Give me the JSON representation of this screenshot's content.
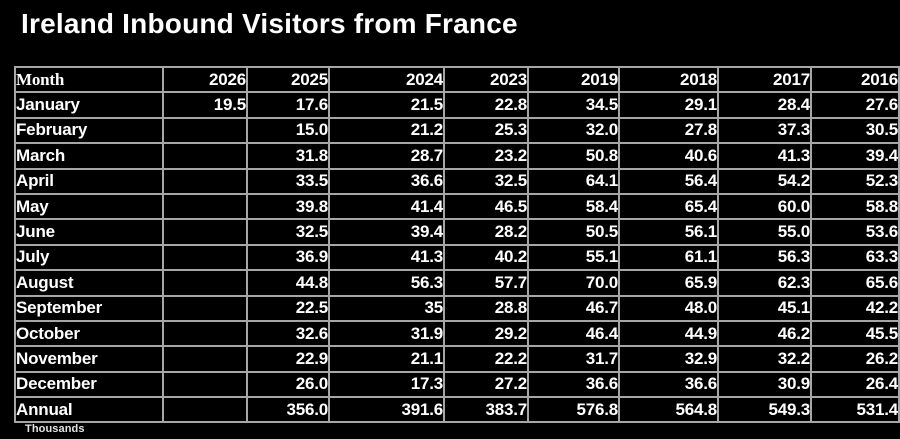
{
  "title": "Ireland Inbound Visitors from France",
  "footnote": "Thousands",
  "table": {
    "columns": [
      "Month",
      "2026",
      "2025",
      "2024",
      "2023",
      "2019",
      "2018",
      "2017",
      "2016"
    ],
    "rows": [
      {
        "label": "January",
        "values": [
          "19.5",
          "17.6",
          "21.5",
          "22.8",
          "34.5",
          "29.1",
          "28.4",
          "27.6"
        ]
      },
      {
        "label": "February",
        "values": [
          "",
          "15.0",
          "21.2",
          "25.3",
          "32.0",
          "27.8",
          "37.3",
          "30.5"
        ]
      },
      {
        "label": "March",
        "values": [
          "",
          "31.8",
          "28.7",
          "23.2",
          "50.8",
          "40.6",
          "41.3",
          "39.4"
        ]
      },
      {
        "label": "April",
        "values": [
          "",
          "33.5",
          "36.6",
          "32.5",
          "64.1",
          "56.4",
          "54.2",
          "52.3"
        ]
      },
      {
        "label": "May",
        "values": [
          "",
          "39.8",
          "41.4",
          "46.5",
          "58.4",
          "65.4",
          "60.0",
          "58.8"
        ]
      },
      {
        "label": "June",
        "values": [
          "",
          "32.5",
          "39.4",
          "28.2",
          "50.5",
          "56.1",
          "55.0",
          "53.6"
        ]
      },
      {
        "label": "July",
        "values": [
          "",
          "36.9",
          "41.3",
          "40.2",
          "55.1",
          "61.1",
          "56.3",
          "63.3"
        ]
      },
      {
        "label": "August",
        "values": [
          "",
          "44.8",
          "56.3",
          "57.7",
          "70.0",
          "65.9",
          "62.3",
          "65.6"
        ]
      },
      {
        "label": "September",
        "values": [
          "",
          "22.5",
          "35",
          "28.8",
          "46.7",
          "48.0",
          "45.1",
          "42.2"
        ]
      },
      {
        "label": "October",
        "values": [
          "",
          "32.6",
          "31.9",
          "29.2",
          "46.4",
          "44.9",
          "46.2",
          "45.5"
        ]
      },
      {
        "label": "November",
        "values": [
          "",
          "22.9",
          "21.1",
          "22.2",
          "31.7",
          "32.9",
          "32.2",
          "26.2"
        ]
      },
      {
        "label": "December",
        "values": [
          "",
          "26.0",
          "17.3",
          "27.2",
          "36.6",
          "36.6",
          "30.9",
          "26.4"
        ]
      },
      {
        "label": "Annual",
        "values": [
          "",
          "356.0",
          "391.6",
          "383.7",
          "576.8",
          "564.8",
          "549.3",
          "531.4"
        ]
      }
    ]
  },
  "colors": {
    "background": "#000000",
    "text": "#ffffff",
    "grid_border": "#a6a6a6"
  },
  "chart_data": {
    "type": "table",
    "title": "Ireland Inbound Visitors from France",
    "units": "Thousands",
    "categories": [
      "January",
      "February",
      "March",
      "April",
      "May",
      "June",
      "July",
      "August",
      "September",
      "October",
      "November",
      "December",
      "Annual"
    ],
    "series": [
      {
        "name": "2026",
        "values": [
          19.5,
          null,
          null,
          null,
          null,
          null,
          null,
          null,
          null,
          null,
          null,
          null,
          null
        ]
      },
      {
        "name": "2025",
        "values": [
          17.6,
          15.0,
          31.8,
          33.5,
          39.8,
          32.5,
          36.9,
          44.8,
          22.5,
          32.6,
          22.9,
          26.0,
          356.0
        ]
      },
      {
        "name": "2024",
        "values": [
          21.5,
          21.2,
          28.7,
          36.6,
          41.4,
          39.4,
          41.3,
          56.3,
          35,
          31.9,
          21.1,
          17.3,
          391.6
        ]
      },
      {
        "name": "2023",
        "values": [
          22.8,
          25.3,
          23.2,
          32.5,
          46.5,
          28.2,
          40.2,
          57.7,
          28.8,
          29.2,
          22.2,
          27.2,
          383.7
        ]
      },
      {
        "name": "2019",
        "values": [
          34.5,
          32.0,
          50.8,
          64.1,
          58.4,
          50.5,
          55.1,
          70.0,
          46.7,
          46.4,
          31.7,
          36.6,
          576.8
        ]
      },
      {
        "name": "2018",
        "values": [
          29.1,
          27.8,
          40.6,
          56.4,
          65.4,
          56.1,
          61.1,
          65.9,
          48.0,
          44.9,
          32.9,
          36.6,
          564.8
        ]
      },
      {
        "name": "2017",
        "values": [
          28.4,
          37.3,
          41.3,
          54.2,
          60.0,
          55.0,
          56.3,
          62.3,
          45.1,
          46.2,
          32.2,
          30.9,
          549.3
        ]
      },
      {
        "name": "2016",
        "values": [
          27.6,
          30.5,
          39.4,
          52.3,
          58.8,
          53.6,
          63.3,
          65.6,
          42.2,
          45.5,
          26.2,
          26.4,
          531.4
        ]
      }
    ]
  }
}
